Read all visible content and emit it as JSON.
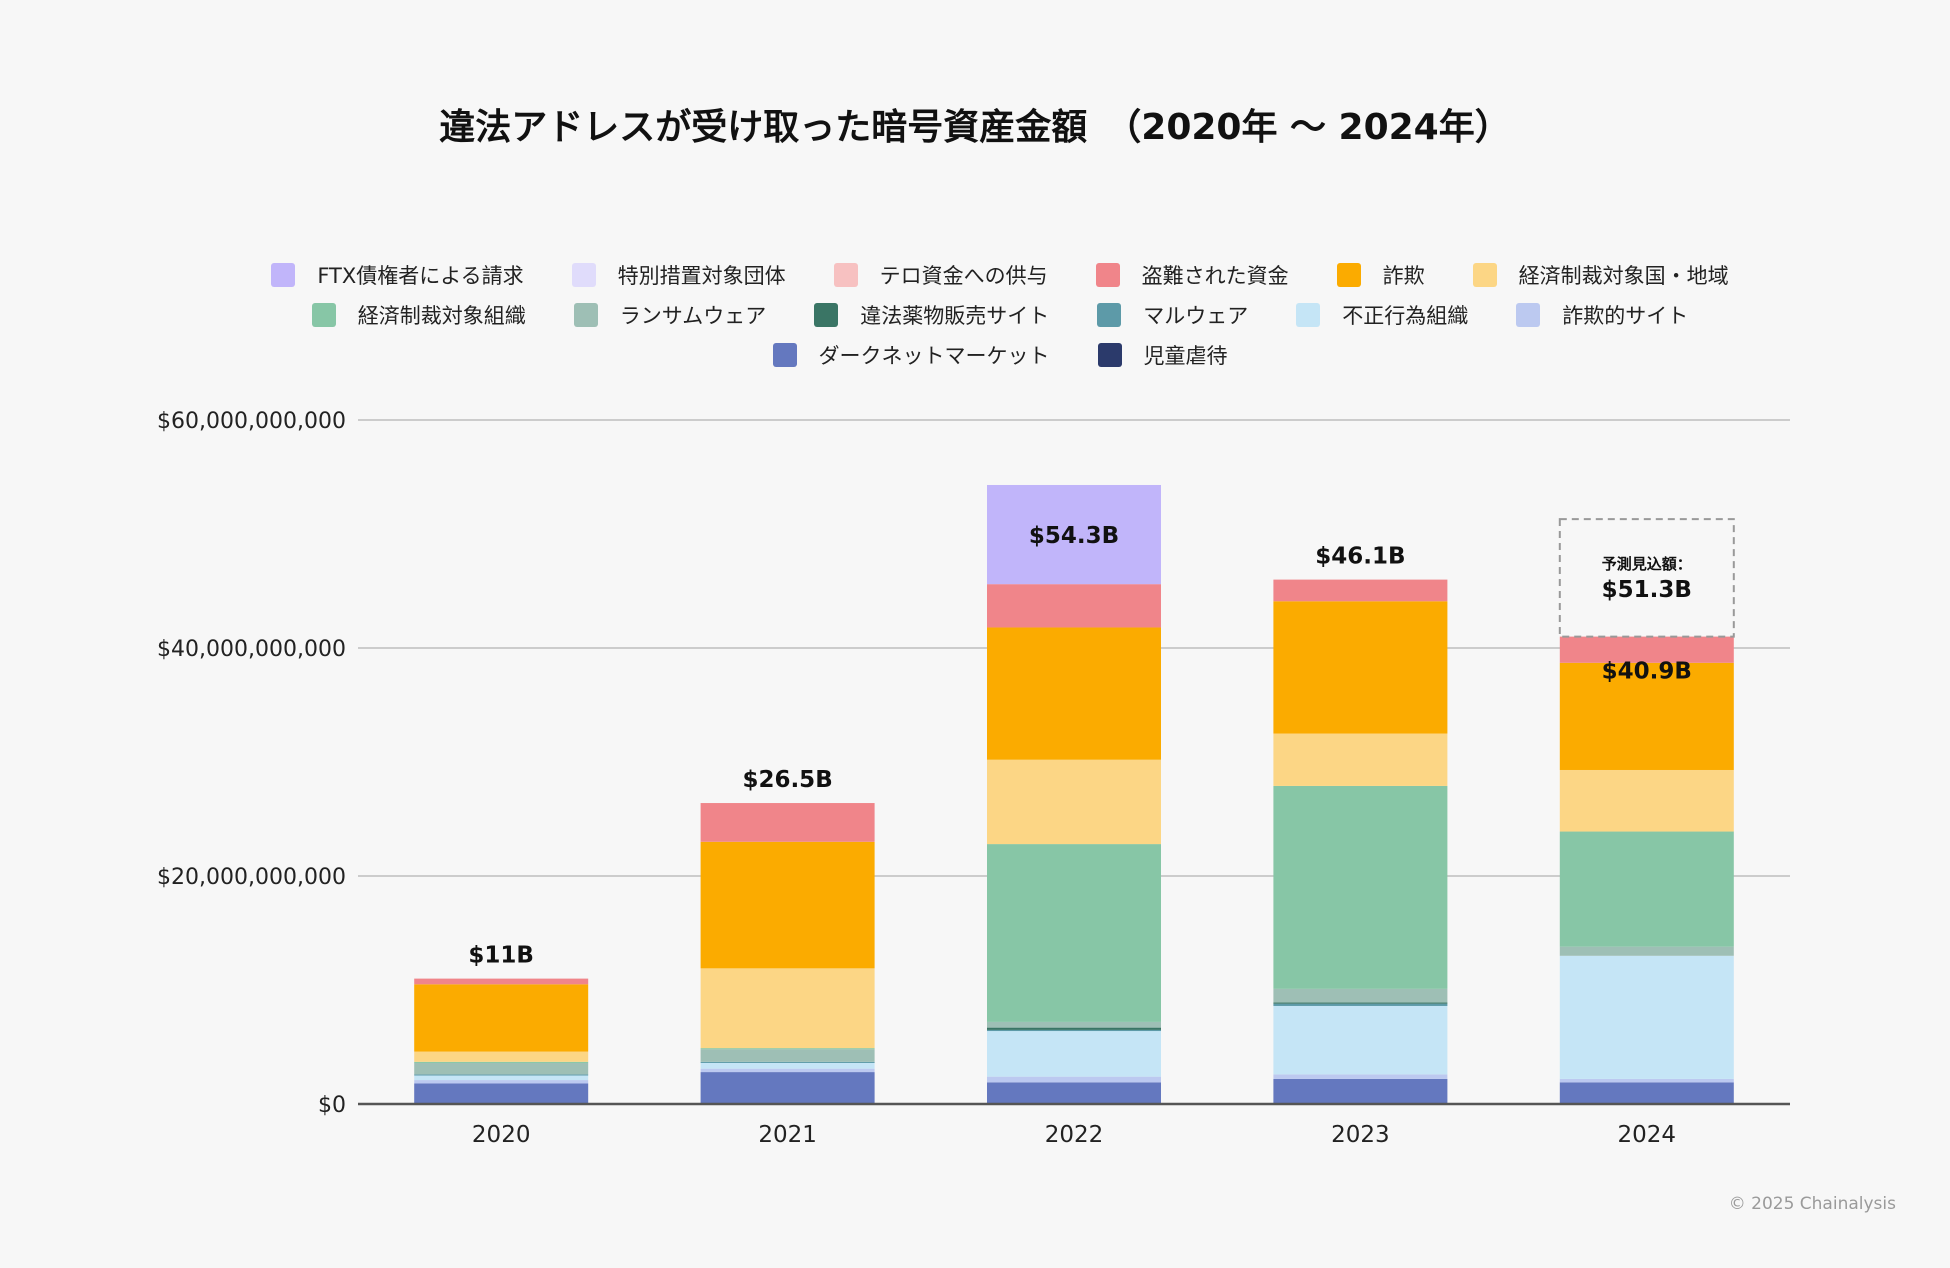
{
  "chart_data": {
    "type": "bar",
    "stacked": true,
    "title": "違法アドレスが受け取った暗号資産金額　（2020年 〜 2024年）",
    "xlabel": "",
    "ylabel": "",
    "ylim": [
      0,
      60000000000
    ],
    "yticks": [
      0,
      20000000000,
      40000000000,
      60000000000
    ],
    "ytick_labels": [
      "$0",
      "$20,000,000,000",
      "$40,000,000,000",
      "$60,000,000,000"
    ],
    "categories": [
      "2020",
      "2021",
      "2022",
      "2023",
      "2024"
    ],
    "grid": true,
    "legend_position": "top",
    "series": [
      {
        "name": "児童虐待",
        "color": "#2b3a6b",
        "values": [
          0,
          0,
          0,
          0,
          0
        ]
      },
      {
        "name": "ダークネットマーケット",
        "color": "#6478bf",
        "values": [
          1800000000,
          2800000000,
          1900000000,
          2200000000,
          1900000000
        ]
      },
      {
        "name": "詐欺的サイト",
        "color": "#bcc9f0",
        "values": [
          300000000,
          300000000,
          500000000,
          400000000,
          300000000
        ]
      },
      {
        "name": "不正行為組織",
        "color": "#c5e5f6",
        "values": [
          400000000,
          500000000,
          4000000000,
          6000000000,
          10800000000
        ]
      },
      {
        "name": "マルウェア",
        "color": "#5d9aa8",
        "values": [
          100000000,
          100000000,
          100000000,
          200000000,
          0
        ]
      },
      {
        "name": "違法薬物販売サイト",
        "color": "#3a7565",
        "values": [
          0,
          0,
          200000000,
          100000000,
          0
        ]
      },
      {
        "name": "ランサムウェア",
        "color": "#9ebfb5",
        "values": [
          1000000000,
          1100000000,
          500000000,
          1200000000,
          800000000
        ]
      },
      {
        "name": "経済制裁対象組織",
        "color": "#87c6a6",
        "values": [
          100000000,
          100000000,
          15600000000,
          17800000000,
          10100000000
        ]
      },
      {
        "name": "経済制裁対象国・地域",
        "color": "#fcd685",
        "values": [
          900000000,
          7000000000,
          7400000000,
          4600000000,
          5400000000
        ]
      },
      {
        "name": "詐欺",
        "color": "#fbab00",
        "values": [
          5900000000,
          11100000000,
          11600000000,
          11600000000,
          9400000000
        ]
      },
      {
        "name": "盗難された資金",
        "color": "#f0858a",
        "values": [
          500000000,
          3400000000,
          3800000000,
          1900000000,
          2300000000
        ]
      },
      {
        "name": "テロ資金への供与",
        "color": "#f7c1c1",
        "values": [
          0,
          0,
          0,
          0,
          0
        ]
      },
      {
        "name": "特別措置対象団体",
        "color": "#e0dcfb",
        "values": [
          0,
          0,
          0,
          0,
          0
        ]
      },
      {
        "name": "FTX債権者による請求",
        "color": "#c1b5fa",
        "values": [
          0,
          0,
          8700000000,
          0,
          0
        ]
      }
    ],
    "legend_order": [
      "FTX債権者による請求",
      "特別措置対象団体",
      "テロ資金への供与",
      "盗難された資金",
      "詐欺",
      "経済制裁対象国・地域",
      "経済制裁対象組織",
      "ランサムウェア",
      "違法薬物販売サイト",
      "マルウェア",
      "不正行為組織",
      "詐欺的サイト",
      "ダークネットマーケット",
      "児童虐待"
    ],
    "totals": [
      "$11B",
      "$26.5B",
      "$54.3B",
      "$46.1B",
      "$40.9B"
    ],
    "projection": {
      "category": "2024",
      "label": "予測見込額：",
      "value_label": "$51.3B",
      "value": 51300000000
    }
  },
  "footer": {
    "copyright": "© 2025 Chainalysis"
  },
  "colors": {
    "axis": "#555555",
    "grid": "#cccccc",
    "background": "#f7f7f7"
  }
}
